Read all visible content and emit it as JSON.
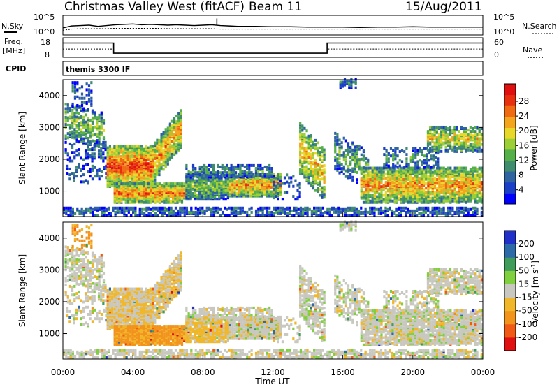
{
  "header": {
    "site": "Christmas Valley West (fitACF)",
    "beam": "Beam 11",
    "date": "15/Aug/2011"
  },
  "strip_labels": {
    "nsky": "N.Sky",
    "nsearch": "N.Search",
    "freq_line1": "Freq.",
    "freq_line2": "[MHz]",
    "nave": "Nave",
    "cpid": "CPID",
    "cpid_value": "themis 3300 IF"
  },
  "strip_ticks": {
    "noise_left": [
      "10^5",
      "10^0"
    ],
    "noise_right": [
      "10^5",
      "10^0"
    ],
    "freq_left": [
      "18",
      "8"
    ],
    "nave_right": [
      "60",
      "0"
    ]
  },
  "chart_data": [
    {
      "type": "line",
      "name": "noise",
      "ylabel_left": "N.Sky",
      "ylabel_right": "N.Search",
      "x_hours": [
        0,
        0.5,
        1,
        1.5,
        2,
        2.5,
        3,
        3.5,
        4,
        4.5,
        5,
        5.5,
        6,
        6.5,
        7,
        7.5,
        8,
        8.5,
        9,
        9.5,
        10,
        11,
        12,
        13,
        14,
        15,
        16,
        17,
        18,
        19,
        20,
        21,
        22,
        23,
        24
      ],
      "sky": [
        1.8,
        2.3,
        2.4,
        2.5,
        2.2,
        2.4,
        2.6,
        2.7,
        2.8,
        2.6,
        2.7,
        2.6,
        2.5,
        2.6,
        2.5,
        2.4,
        2.5,
        2.6,
        2.4,
        2.3,
        2.2,
        2.2,
        2.1,
        2.1,
        2.0,
        2.0,
        2.0,
        1.9,
        2.0,
        2.0,
        2.1,
        2.0,
        2.0,
        2.0,
        2.0
      ],
      "search": [
        1.2,
        1.5,
        1.6,
        1.6,
        1.6,
        1.6,
        1.7,
        1.7,
        1.7,
        1.7,
        1.7,
        1.7,
        1.6,
        1.6,
        1.6,
        1.6,
        1.6,
        1.6,
        1.5,
        1.5,
        1.5,
        1.5,
        1.5,
        1.5,
        1.5,
        1.5,
        1.5,
        1.5,
        1.5,
        1.5,
        1.5,
        1.5,
        1.5,
        1.5,
        1.5
      ],
      "ylim_log10": [
        0,
        5
      ]
    },
    {
      "type": "line",
      "name": "frequency-nave",
      "segments": [
        {
          "x": [
            0,
            2.9
          ],
          "freq": 15.5,
          "nave": 25
        },
        {
          "x": [
            2.9,
            15.1
          ],
          "freq": 9.9,
          "nave": 15
        },
        {
          "x": [
            15.1,
            24
          ],
          "freq": 15.5,
          "nave": 25
        }
      ],
      "ylim_freq": [
        8,
        18
      ],
      "ylim_nave": [
        0,
        60
      ]
    },
    {
      "type": "heatmap",
      "name": "power",
      "ylabel": "Slant Range [km]",
      "yticks": [
        "1000",
        "2000",
        "3000",
        "4000"
      ],
      "ylim": [
        200,
        4500
      ],
      "colorbar_label": "Power [dB]",
      "colorbar_ticks": [
        "4",
        "8",
        "12",
        "16",
        "20",
        "24",
        "28"
      ],
      "colorbar_range": [
        0,
        30
      ],
      "colors": [
        "#0000ff",
        "#1c3fc8",
        "#2f64a0",
        "#3f8c6e",
        "#56b04a",
        "#9ccf36",
        "#e8d82a",
        "#f4a51e",
        "#f06a14",
        "#e83010",
        "#e01010"
      ]
    },
    {
      "type": "heatmap",
      "name": "velocity",
      "ylabel": "Slant Range [km]",
      "yticks": [
        "1000",
        "2000",
        "3000",
        "4000"
      ],
      "ylim": [
        200,
        4500
      ],
      "colorbar_label": "Velocity [m s^-1]",
      "colorbar_ticks": [
        "-200",
        "-100",
        "-50",
        "-15",
        "15",
        "50",
        "100",
        "200"
      ],
      "colors": [
        "#e01010",
        "#f05a14",
        "#f2931c",
        "#f0b72a",
        "#c8c8c0",
        "#7fcf3f",
        "#3f9c5a",
        "#2c6aa8",
        "#2030c8"
      ],
      "xlabel": "Time UT",
      "xticks": [
        "00:00",
        "04:00",
        "08:00",
        "12:00",
        "16:00",
        "20:00",
        "00:00"
      ],
      "xlim_hours": [
        0,
        24
      ]
    }
  ],
  "echo_regions": [
    {
      "t": [
        0.1,
        2.4
      ],
      "r": [
        2600,
        3700
      ],
      "slope": -300,
      "density": 0.5,
      "p": 14,
      "pv": 3,
      "v": 0
    },
    {
      "t": [
        0.5,
        1.7
      ],
      "r": [
        3600,
        4400
      ],
      "slope": 0,
      "density": 0.25,
      "p": 8,
      "pv": 6,
      "v": -60
    },
    {
      "t": [
        0.1,
        2.5
      ],
      "r": [
        1900,
        2500
      ],
      "slope": 0,
      "density": 0.3,
      "p": 7,
      "pv": 3,
      "v": 0
    },
    {
      "t": [
        0.2,
        2.8
      ],
      "r": [
        1200,
        1800
      ],
      "slope": 0,
      "density": 0.2,
      "p": 6,
      "pv": 3,
      "v": 0
    },
    {
      "t": [
        2.5,
        5.2
      ],
      "r": [
        1100,
        2400
      ],
      "slope": 0,
      "density": 0.85,
      "p": 26,
      "pv": 3,
      "v": -15
    },
    {
      "t": [
        5.2,
        6.8
      ],
      "r": [
        1300,
        2500
      ],
      "slope": 1100,
      "density": 0.75,
      "p": 22,
      "pv": 4,
      "v": -15
    },
    {
      "t": [
        2.9,
        7.0
      ],
      "r": [
        600,
        1200
      ],
      "slope": 0,
      "density": 0.9,
      "p": 24,
      "pv": 3,
      "v": -60
    },
    {
      "t": [
        7.0,
        9.5
      ],
      "r": [
        700,
        1500
      ],
      "slope": 0,
      "density": 0.85,
      "p": 14,
      "pv": 5,
      "v": -25
    },
    {
      "t": [
        9.5,
        12.5
      ],
      "r": [
        800,
        1500
      ],
      "slope": 0,
      "density": 0.85,
      "p": 22,
      "pv": 4,
      "v": 0
    },
    {
      "t": [
        7.0,
        12.0
      ],
      "r": [
        1400,
        1800
      ],
      "slope": 0,
      "density": 0.5,
      "p": 10,
      "pv": 3,
      "v": 0
    },
    {
      "t": [
        12.0,
        13.6
      ],
      "r": [
        700,
        1500
      ],
      "slope": 0,
      "density": 0.2,
      "p": 8,
      "pv": 3,
      "v": 0
    },
    {
      "t": [
        13.5,
        15.0
      ],
      "r": [
        1500,
        3100
      ],
      "slope": -900,
      "density": 0.55,
      "p": 20,
      "pv": 4,
      "v": 0
    },
    {
      "t": [
        15.8,
        16.8
      ],
      "r": [
        4200,
        4500
      ],
      "slope": 0,
      "density": 0.4,
      "p": 7,
      "pv": 4,
      "v": 0
    },
    {
      "t": [
        15.5,
        17.5
      ],
      "r": [
        1600,
        2800
      ],
      "slope": -600,
      "density": 0.4,
      "p": 12,
      "pv": 4,
      "v": 0
    },
    {
      "t": [
        17.0,
        24.0
      ],
      "r": [
        600,
        1700
      ],
      "slope": 0,
      "density": 0.75,
      "p": 22,
      "pv": 4,
      "v": 0
    },
    {
      "t": [
        18.3,
        21.5
      ],
      "r": [
        1700,
        2300
      ],
      "slope": 0,
      "density": 0.35,
      "p": 10,
      "pv": 4,
      "v": 0
    },
    {
      "t": [
        20.8,
        24.0
      ],
      "r": [
        2200,
        3000
      ],
      "slope": 0,
      "density": 0.65,
      "p": 18,
      "pv": 4,
      "v": 0
    },
    {
      "t": [
        0.0,
        24.0
      ],
      "r": [
        200,
        450
      ],
      "slope": 0,
      "density": 0.55,
      "p": 8,
      "pv": 4,
      "v": 0
    }
  ]
}
